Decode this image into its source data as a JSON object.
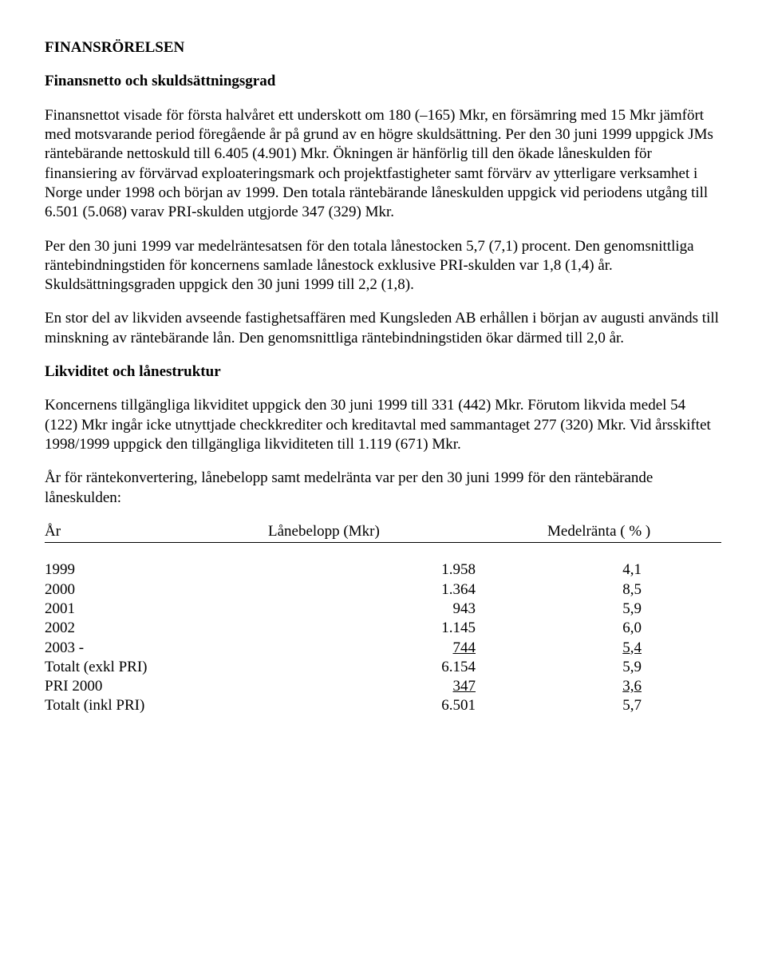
{
  "section_title": "FINANSRÖRELSEN",
  "sub1_title": "Finansnetto och skuldsättningsgrad",
  "p1": "Finansnettot visade för första halvåret ett underskott om 180 (–165) Mkr, en försämring med 15 Mkr jämfört med motsvarande period föregående år på grund av en högre skuldsättning. Per den 30 juni 1999 uppgick JMs räntebärande nettoskuld till 6.405 (4.901) Mkr. Ökningen är hänförlig till den ökade låneskulden för finansiering av förvärvad exploateringsmark och projektfastigheter samt förvärv av ytterligare verksamhet i Norge under 1998 och början av 1999. Den totala räntebärande låneskulden uppgick vid periodens utgång till 6.501 (5.068) varav PRI-skulden utgjorde 347 (329) Mkr.",
  "p2": "Per den 30 juni 1999 var medelräntesatsen för den totala lånestocken 5,7  (7,1) procent. Den genomsnittliga räntebindningstiden för koncernens samlade lånestock exklusive PRI-skulden var 1,8 (1,4) år. Skuldsättningsgraden uppgick den 30 juni 1999 till 2,2 (1,8).",
  "p3": "En stor del av likviden avseende fastighetsaffären med Kungsleden AB erhållen i början av augusti används till minskning av räntebärande lån. Den genomsnittliga räntebindningstiden ökar därmed till 2,0 år.",
  "sub2_title": "Likviditet och lånestruktur",
  "p4": "Koncernens tillgängliga likviditet uppgick den 30 juni 1999 till 331 (442) Mkr. Förutom likvida medel 54 (122) Mkr ingår icke utnyttjade checkkrediter och kreditavtal med sammantaget 277 (320) Mkr. Vid årsskiftet 1998/1999 uppgick den tillgängliga likviditeten till 1.119 (671) Mkr.",
  "p5": "År för räntekonvertering, lånebelopp samt medelränta var per den 30 juni 1999 för den räntebärande låneskulden:",
  "table": {
    "headers": {
      "year": "År",
      "amount": "Lånebelopp (Mkr)",
      "rate": "Medelränta ( % )"
    },
    "rows": [
      {
        "year": "1999",
        "amount": "1.958",
        "rate": "4,1",
        "u_amount": false,
        "u_rate": false
      },
      {
        "year": "2000",
        "amount": "1.364",
        "rate": "8,5",
        "u_amount": false,
        "u_rate": false
      },
      {
        "year": "2001",
        "amount": "943",
        "rate": "5,9",
        "u_amount": false,
        "u_rate": false
      },
      {
        "year": "2002",
        "amount": "1.145",
        "rate": "6,0",
        "u_amount": false,
        "u_rate": false
      },
      {
        "year": "2003 -",
        "amount": "744",
        "rate": "5,4",
        "u_amount": true,
        "u_rate": true
      },
      {
        "year": "Totalt (exkl PRI)",
        "amount": "6.154",
        "rate": "5,9",
        "u_amount": false,
        "u_rate": false
      },
      {
        "year": "PRI 2000",
        "amount": "347",
        "rate": "3,6",
        "u_amount": true,
        "u_rate": true
      },
      {
        "year": "Totalt (inkl PRI)",
        "amount": "6.501",
        "rate": "5,7",
        "u_amount": false,
        "u_rate": false
      }
    ]
  }
}
